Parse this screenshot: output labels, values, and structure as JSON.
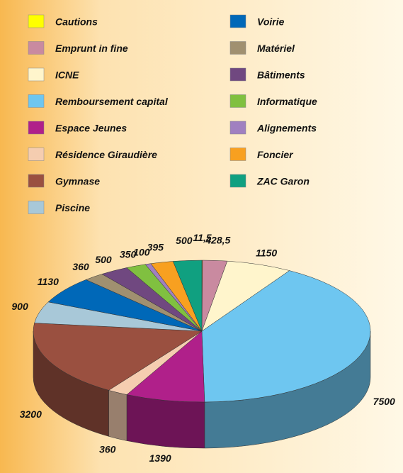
{
  "chart_data": {
    "type": "pie3d",
    "categories": [
      "Cautions",
      "Emprunt in fine",
      "ICNE",
      "Remboursement capital",
      "Espace Jeunes",
      "Résidence Giraudière",
      "Gymnase",
      "Piscine",
      "Voirie",
      "Matériel",
      "Bâtiments",
      "Informatique",
      "Alignements",
      "Foncier",
      "ZAC Garon"
    ],
    "values": [
      11.5,
      428.5,
      1150,
      7500,
      1390,
      360,
      3200,
      900,
      1130,
      360,
      500,
      350,
      100,
      395,
      500
    ],
    "value_labels": [
      "11,5",
      "428,5",
      "1150",
      "7500",
      "1390",
      "360",
      "3200",
      "900",
      "1130",
      "360",
      "500",
      "350",
      "100",
      "395",
      "500"
    ],
    "colors": [
      "#ffff00",
      "#c98aa0",
      "#fff5cc",
      "#6ec6f0",
      "#b0208a",
      "#f5cdb0",
      "#9a5040",
      "#a8c8d8",
      "#0068b8",
      "#a09070",
      "#704880",
      "#80c040",
      "#a080c0",
      "#f8a020",
      "#10a080"
    ],
    "legend": "top"
  }
}
